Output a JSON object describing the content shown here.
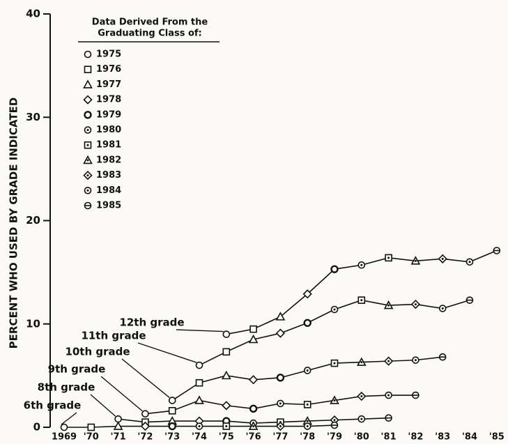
{
  "chart_data": {
    "type": "line",
    "ylabel": "PERCENT WHO USED BY GRADE INDICATED",
    "categories": [
      "1969",
      "'70",
      "'71",
      "'72",
      "'73",
      "'74",
      "'75",
      "'76",
      "'77",
      "'78",
      "'79",
      "'80",
      "'81",
      "'82",
      "'83",
      "'84",
      "'85"
    ],
    "ylim": [
      0,
      40
    ],
    "yticks": [
      0,
      10,
      20,
      30,
      40
    ],
    "legend_title": [
      "Data Derived From the",
      "Graduating Class of:"
    ],
    "legend": [
      {
        "label": "1975",
        "marker": "circle"
      },
      {
        "label": "1976",
        "marker": "square"
      },
      {
        "label": "1977",
        "marker": "triangle"
      },
      {
        "label": "1978",
        "marker": "diamond"
      },
      {
        "label": "1979",
        "marker": "circle-bold"
      },
      {
        "label": "1980",
        "marker": "circle-dot"
      },
      {
        "label": "1981",
        "marker": "square-dot"
      },
      {
        "label": "1982",
        "marker": "triangle-dot"
      },
      {
        "label": "1983",
        "marker": "diamond-dot"
      },
      {
        "label": "1984",
        "marker": "circle-dot"
      },
      {
        "label": "1985",
        "marker": "circle-bar"
      }
    ],
    "color": "#111111",
    "series": [
      {
        "name": "12th grade",
        "values": [
          null,
          null,
          null,
          null,
          null,
          null,
          9.0,
          9.5,
          10.7,
          12.9,
          15.3,
          15.7,
          16.4,
          16.1,
          16.3,
          16.0,
          17.1
        ]
      },
      {
        "name": "11th grade",
        "values": [
          null,
          null,
          null,
          null,
          null,
          6.0,
          7.3,
          8.5,
          9.1,
          10.1,
          11.4,
          12.3,
          11.8,
          11.9,
          11.5,
          12.3,
          null
        ]
      },
      {
        "name": "10th grade",
        "values": [
          null,
          null,
          null,
          null,
          2.6,
          4.3,
          5.0,
          4.6,
          4.8,
          5.5,
          6.2,
          6.3,
          6.4,
          6.5,
          6.8,
          null,
          null
        ]
      },
      {
        "name": "9th grade",
        "values": [
          null,
          null,
          null,
          1.3,
          1.6,
          2.6,
          2.1,
          1.8,
          2.3,
          2.2,
          2.6,
          3.0,
          3.1,
          3.1,
          null,
          null,
          null
        ]
      },
      {
        "name": "8th grade",
        "values": [
          null,
          null,
          0.8,
          0.5,
          0.6,
          0.6,
          0.6,
          0.4,
          0.5,
          0.6,
          0.7,
          0.8,
          0.9,
          null,
          null,
          null,
          null
        ]
      },
      {
        "name": "6th grade",
        "values": [
          0,
          0,
          0.1,
          0.1,
          0.1,
          0.1,
          0.1,
          0.1,
          0.1,
          0.1,
          0.2,
          null,
          null,
          null,
          null,
          null,
          null
        ]
      }
    ]
  }
}
